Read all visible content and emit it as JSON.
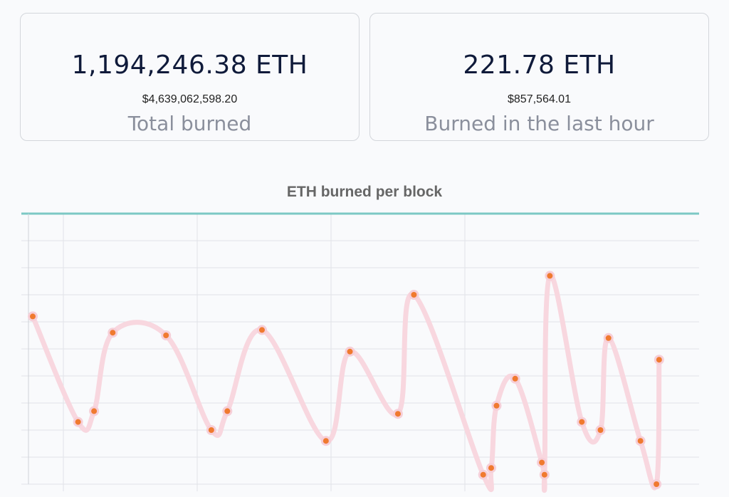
{
  "cards": [
    {
      "value": "1,194,246.38 ETH",
      "usd": "$4,639,062,598.20",
      "label": "Total burned"
    },
    {
      "value": "221.78 ETH",
      "usd": "$857,564.01",
      "label": "Burned in the last hour"
    }
  ],
  "chart_data": {
    "type": "line",
    "title": "ETH burned per block",
    "xlabel": "",
    "ylabel": "",
    "grid": true,
    "legend": "none",
    "colors": {
      "line": "#f8d7df",
      "point": "#f07a2f",
      "axis_top": "#7cc8c4",
      "grid": "#e1e3e8"
    },
    "ylim": [
      0,
      10
    ],
    "x": [
      0,
      1.7,
      2.3,
      3.0,
      5.0,
      6.7,
      7.3,
      8.6,
      11.0,
      11.9,
      13.7,
      14.3,
      16.9,
      17.2,
      17.4,
      18.1,
      19.1,
      19.2,
      19.4,
      20.6,
      21.3,
      21.6,
      22.8,
      23.4,
      23.5
    ],
    "values": [
      6.2,
      2.3,
      2.7,
      5.6,
      5.5,
      2.0,
      2.7,
      5.7,
      1.6,
      4.9,
      2.6,
      7.0,
      0.35,
      0.6,
      2.9,
      3.9,
      0.8,
      0.35,
      7.7,
      2.3,
      2.0,
      5.4,
      1.6,
      0.0,
      4.6
    ]
  }
}
